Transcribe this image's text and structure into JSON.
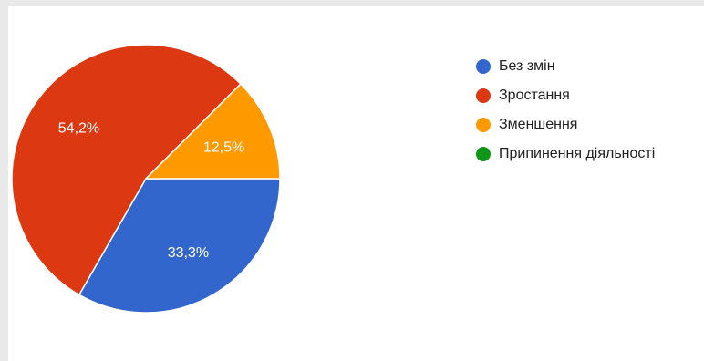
{
  "chart_data": {
    "type": "pie",
    "categories": [
      "Без змін",
      "Зростання",
      "Зменшення",
      "Припинення діяльності"
    ],
    "values": [
      33.3,
      54.2,
      12.5,
      0
    ],
    "labels": [
      "33,3%",
      "54,2%",
      "12,5%",
      ""
    ],
    "colors": [
      "#3366cc",
      "#dc3912",
      "#ff9900",
      "#109618"
    ],
    "legend_position": "right"
  }
}
